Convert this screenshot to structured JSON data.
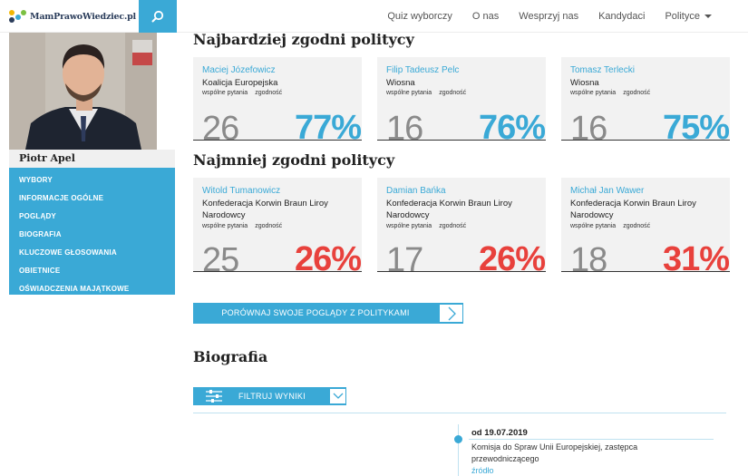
{
  "brand": {
    "name": "MamPrawoWiedziec.pl",
    "colors": {
      "accent": "#3aa9d6",
      "agree_high": "#3aa9d6",
      "agree_low": "#e8413c",
      "count": "#8a8a8a"
    }
  },
  "nav": {
    "items": [
      "Quiz wyborczy",
      "O nas",
      "Wesprzyj nas",
      "Kandydaci",
      "Polityce"
    ],
    "search_icon": "search-icon"
  },
  "profile": {
    "name": "Piotr Apel",
    "menu": [
      "Wybory",
      "Informacje ogólne",
      "Poglądy",
      "Biografia",
      "Kluczowe głosowania",
      "Obietnice",
      "Oświadczenia majątkowe"
    ]
  },
  "most_agree": {
    "title": "Najbardziej zgodni politycy",
    "cards": [
      {
        "name": "Maciej Józefowicz",
        "party": "Koalicja Europejska",
        "label_common": "wspólne pytania",
        "label_agree": "zgodność",
        "count": "26",
        "pct": "77%"
      },
      {
        "name": "Filip Tadeusz Pelc",
        "party": "Wiosna",
        "label_common": "wspólne pytania",
        "label_agree": "zgodność",
        "count": "16",
        "pct": "76%"
      },
      {
        "name": "Tomasz Terlecki",
        "party": "Wiosna",
        "label_common": "wspólne pytania",
        "label_agree": "zgodność",
        "count": "16",
        "pct": "75%"
      }
    ]
  },
  "least_agree": {
    "title": "Najmniej zgodni politycy",
    "cards": [
      {
        "name": "Witold Tumanowicz",
        "party": "Konfederacja Korwin Braun Liroy Narodowcy",
        "label_common": "wspólne pytania",
        "label_agree": "zgodność",
        "count": "25",
        "pct": "26%"
      },
      {
        "name": "Damian Bańka",
        "party": "Konfederacja Korwin Braun Liroy Narodowcy",
        "label_common": "wspólne pytania",
        "label_agree": "zgodność",
        "count": "17",
        "pct": "26%"
      },
      {
        "name": "Michał Jan Wawer",
        "party": "Konfederacja Korwin Braun Liroy Narodowcy",
        "label_common": "wspólne pytania",
        "label_agree": "zgodność",
        "count": "18",
        "pct": "31%"
      }
    ]
  },
  "compare_button": "PORÓWNAJ SWOJE POGLĄDY Z POLITYKAMI",
  "biography": {
    "title": "Biografia",
    "filter_button": "FILTRUJ WYNIKI",
    "entries": [
      {
        "date": "od 19.07.2019",
        "text": "Komisja do Spraw Unii Europejskiej, zastępca przewodniczącego",
        "source": "źródło"
      }
    ]
  }
}
